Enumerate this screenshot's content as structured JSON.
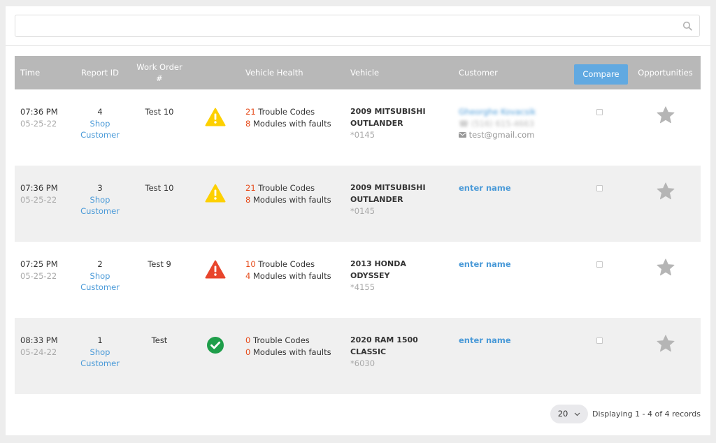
{
  "search": {
    "placeholder": ""
  },
  "table": {
    "headers": {
      "time": "Time",
      "report_id": "Report ID",
      "work_order": "Work Order #",
      "vehicle_health": "Vehicle Health",
      "vehicle": "Vehicle",
      "customer": "Customer",
      "compare": "Compare",
      "opportunities": "Opportunities"
    },
    "rows": [
      {
        "time": "07:36 PM",
        "date": "05-25-22",
        "report_id": "4",
        "shop_link": "Shop",
        "customer_link": "Customer",
        "work_order": "Test 10",
        "health_status": "warning",
        "trouble_count": "21",
        "trouble_label": "Trouble Codes",
        "module_count": "8",
        "module_label": "Modules with faults",
        "vehicle_line1": "2009 MITSUBISHI",
        "vehicle_line2": "OUTLANDER",
        "vin_suffix": "*0145",
        "customer_name": "Gheorghe Kovacsik",
        "customer_phone": "(516) 615-4663",
        "customer_email": "test@gmail.com"
      },
      {
        "time": "07:36 PM",
        "date": "05-25-22",
        "report_id": "3",
        "shop_link": "Shop",
        "customer_link": "Customer",
        "work_order": "Test 10",
        "health_status": "warning",
        "trouble_count": "21",
        "trouble_label": "Trouble Codes",
        "module_count": "8",
        "module_label": "Modules with faults",
        "vehicle_line1": "2009 MITSUBISHI",
        "vehicle_line2": "OUTLANDER",
        "vin_suffix": "*0145",
        "customer_name": "enter name"
      },
      {
        "time": "07:25 PM",
        "date": "05-25-22",
        "report_id": "2",
        "shop_link": "Shop",
        "customer_link": "Customer",
        "work_order": "Test 9",
        "health_status": "danger",
        "trouble_count": "10",
        "trouble_label": "Trouble Codes",
        "module_count": "4",
        "module_label": "Modules with faults",
        "vehicle_line1": "2013 HONDA ODYSSEY",
        "vehicle_line2": "",
        "vin_suffix": "*4155",
        "customer_name": "enter name"
      },
      {
        "time": "08:33 PM",
        "date": "05-24-22",
        "report_id": "1",
        "shop_link": "Shop",
        "customer_link": "Customer",
        "work_order": "Test",
        "health_status": "ok",
        "trouble_count": "0",
        "trouble_label": "Trouble Codes",
        "module_count": "0",
        "module_label": "Modules with faults",
        "vehicle_line1": "2020 RAM 1500 CLASSIC",
        "vehicle_line2": "",
        "vin_suffix": "*6030",
        "customer_name": "enter name"
      }
    ]
  },
  "footer": {
    "page_size": "20",
    "record_count": "Displaying 1 - 4 of 4 records"
  },
  "colors": {
    "accent": "#61a9e1",
    "link": "#4a9ad8",
    "warning": "#fdd000",
    "danger": "#e8452c",
    "ok": "#1e9e4a",
    "count_red": "#e64a19",
    "header_bg": "#b8b8b8",
    "star": "#b5b5b5"
  },
  "icons": {
    "search": "search-icon",
    "warning": "warning-triangle-icon",
    "danger": "danger-triangle-icon",
    "ok": "check-circle-icon",
    "star": "star-icon",
    "phone": "phone-icon",
    "email": "envelope-icon",
    "chevron": "chevron-down-icon"
  }
}
